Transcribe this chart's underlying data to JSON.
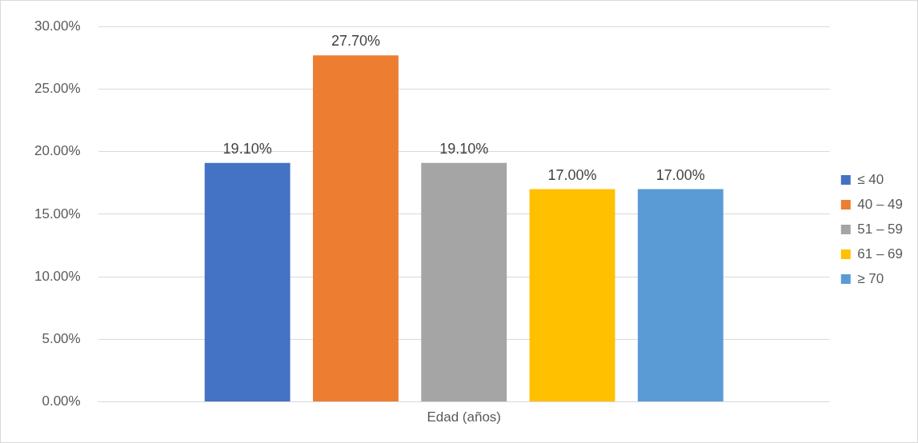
{
  "chart_data": {
    "type": "bar",
    "xlabel": null,
    "categories": [
      "Edad (años)"
    ],
    "series": [
      {
        "name": "≤ 40",
        "color": "#4472c4",
        "values": [
          19.1
        ],
        "value_labels": [
          "19.10%"
        ]
      },
      {
        "name": "40 – 49",
        "color": "#ed7d31",
        "values": [
          27.7
        ],
        "value_labels": [
          "27.70%"
        ]
      },
      {
        "name": "51 – 59",
        "color": "#a5a5a5",
        "values": [
          19.1
        ],
        "value_labels": [
          "19.10%"
        ]
      },
      {
        "name": "61 – 69",
        "color": "#ffc000",
        "values": [
          17.0
        ],
        "value_labels": [
          "17.00%"
        ]
      },
      {
        "name": "≥ 70",
        "color": "#5b9bd5",
        "values": [
          17.0
        ],
        "value_labels": [
          "17.00%"
        ]
      }
    ],
    "ylim": [
      0,
      30
    ],
    "yticks": [
      {
        "value": 0,
        "label": "0.00%"
      },
      {
        "value": 5,
        "label": "5.00%"
      },
      {
        "value": 10,
        "label": "10.00%"
      },
      {
        "value": 15,
        "label": "15.00%"
      },
      {
        "value": 20,
        "label": "20.00%"
      },
      {
        "value": 25,
        "label": "25.00%"
      },
      {
        "value": 30,
        "label": "30.00%"
      }
    ],
    "grid": "y",
    "legend": "right"
  }
}
